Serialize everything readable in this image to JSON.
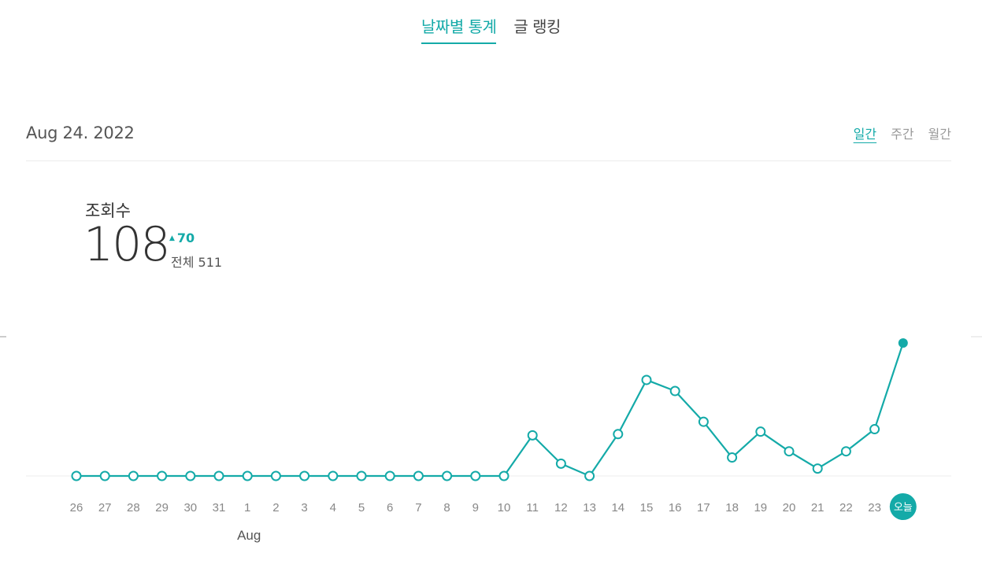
{
  "tabs": {
    "daily_stats": "날짜별 통계",
    "post_ranking": "글 랭킹"
  },
  "date": "Aug 24. 2022",
  "period_tabs": {
    "daily": "일간",
    "weekly": "주간",
    "monthly": "월간"
  },
  "metric": {
    "title": "조회수",
    "value": "108",
    "change": "70",
    "total": "전체 511"
  },
  "colors": {
    "accent": "#14aaa8",
    "text": "#333333",
    "muted": "#888888",
    "grid": "#ececec"
  },
  "chart_data": {
    "type": "line",
    "categories": [
      "26",
      "27",
      "28",
      "29",
      "30",
      "31",
      "1",
      "2",
      "3",
      "4",
      "5",
      "6",
      "7",
      "8",
      "9",
      "10",
      "11",
      "12",
      "13",
      "14",
      "15",
      "16",
      "17",
      "18",
      "19",
      "20",
      "21",
      "22",
      "23",
      "오늘"
    ],
    "values": [
      0,
      0,
      0,
      0,
      0,
      0,
      0,
      0,
      0,
      0,
      0,
      0,
      0,
      0,
      0,
      0,
      33,
      10,
      0,
      34,
      78,
      69,
      44,
      15,
      36,
      20,
      6,
      20,
      38,
      108
    ],
    "month_markers": [
      {
        "index": 6,
        "label": "Aug"
      }
    ],
    "ylim": [
      0,
      108
    ],
    "grid": false,
    "highlight_last": true,
    "title": "",
    "xlabel": "",
    "ylabel": ""
  }
}
